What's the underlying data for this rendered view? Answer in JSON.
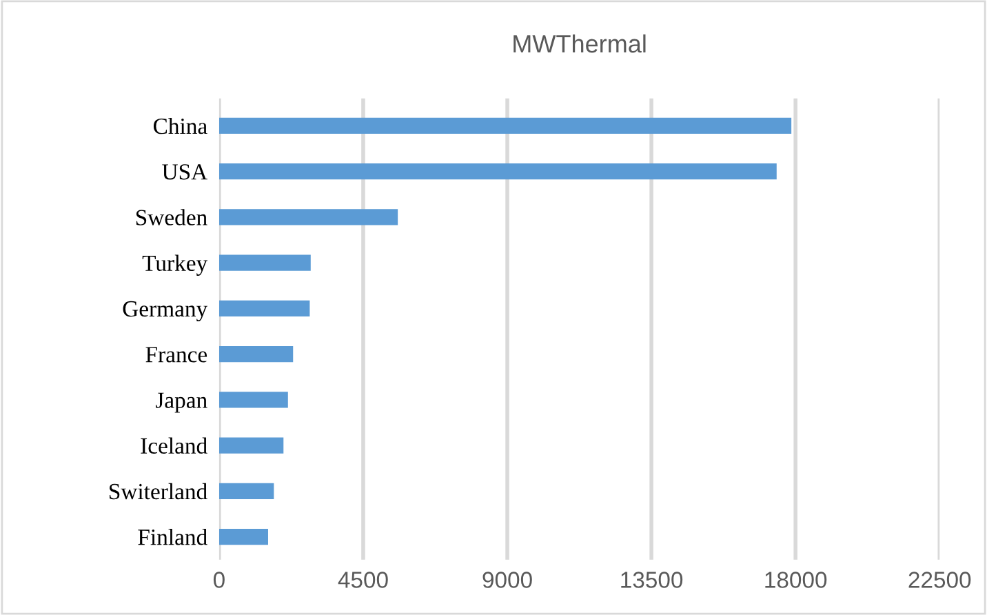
{
  "chart_data": {
    "type": "bar",
    "orientation": "horizontal",
    "title": "MWThermal",
    "categories": [
      "China",
      "USA",
      "Sweden",
      "Turkey",
      "Germany",
      "France",
      "Japan",
      "Iceland",
      "Switerland",
      "Finland"
    ],
    "values": [
      17870,
      17410,
      5580,
      2860,
      2830,
      2310,
      2150,
      2010,
      1710,
      1530
    ],
    "color": "#5b9bd5",
    "xlim": [
      0,
      22500
    ],
    "xticks": [
      0,
      4500,
      9000,
      13500,
      18000,
      22500
    ],
    "grid": "x"
  }
}
